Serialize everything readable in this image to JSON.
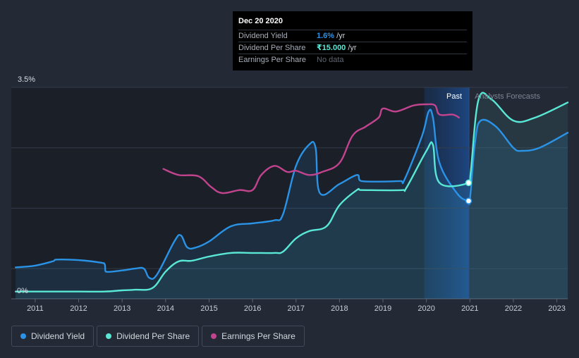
{
  "tooltip": {
    "date": "Dec 20 2020",
    "rows": [
      {
        "label": "Dividend Yield",
        "value": "1.6%",
        "unit": "/yr",
        "color": "#2b93e6"
      },
      {
        "label": "Dividend Per Share",
        "value": "₹15.000",
        "unit": "/yr",
        "color": "#5ae8d6"
      },
      {
        "label": "Earnings Per Share",
        "value": "No data",
        "unit": "",
        "color": "#5d6572"
      }
    ]
  },
  "legend": [
    {
      "label": "Dividend Yield",
      "color": "#2b93e6"
    },
    {
      "label": "Dividend Per Share",
      "color": "#5ae8d6"
    },
    {
      "label": "Earnings Per Share",
      "color": "#c2438e"
    }
  ],
  "chart_data": {
    "type": "line",
    "y_axis": {
      "min_label": "0%",
      "max_label": "3.5%",
      "ylim": [
        0,
        3.5
      ]
    },
    "x_ticks": [
      "2011",
      "2012",
      "2013",
      "2014",
      "2015",
      "2016",
      "2017",
      "2018",
      "2019",
      "2020",
      "2021",
      "2022",
      "2023"
    ],
    "xlim": [
      2010.45,
      2023.25
    ],
    "past_label": "Past",
    "forecast_label": "Analysts Forecasts",
    "past_start": 2019.95,
    "divider": 2020.98,
    "colors": {
      "yield": "#2b93e6",
      "dps": "#5ae8d6",
      "eps": "#c2438e"
    },
    "series": [
      {
        "name": "Dividend Yield",
        "key": "yield",
        "values": [
          [
            2010.55,
            0.52
          ],
          [
            2011.0,
            0.55
          ],
          [
            2011.4,
            0.62
          ],
          [
            2011.5,
            0.65
          ],
          [
            2012.0,
            0.64
          ],
          [
            2012.5,
            0.6
          ],
          [
            2012.6,
            0.57
          ],
          [
            2012.62,
            0.45
          ],
          [
            2013.0,
            0.47
          ],
          [
            2013.3,
            0.5
          ],
          [
            2013.5,
            0.5
          ],
          [
            2013.62,
            0.35
          ],
          [
            2013.8,
            0.4
          ],
          [
            2014.2,
            0.95
          ],
          [
            2014.35,
            1.05
          ],
          [
            2014.5,
            0.85
          ],
          [
            2014.7,
            0.85
          ],
          [
            2015.0,
            0.95
          ],
          [
            2015.5,
            1.2
          ],
          [
            2016.0,
            1.25
          ],
          [
            2016.5,
            1.3
          ],
          [
            2016.7,
            1.4
          ],
          [
            2017.0,
            2.2
          ],
          [
            2017.3,
            2.55
          ],
          [
            2017.45,
            2.5
          ],
          [
            2017.55,
            1.75
          ],
          [
            2018.0,
            1.9
          ],
          [
            2018.4,
            2.05
          ],
          [
            2018.5,
            1.95
          ],
          [
            2019.4,
            1.95
          ],
          [
            2019.5,
            1.98
          ],
          [
            2019.9,
            2.7
          ],
          [
            2020.05,
            3.1
          ],
          [
            2020.15,
            3.0
          ],
          [
            2020.3,
            2.25
          ],
          [
            2020.7,
            1.75
          ],
          [
            2020.95,
            1.62
          ],
          [
            2021.0,
            1.65
          ],
          [
            2021.12,
            2.6
          ],
          [
            2021.25,
            2.95
          ],
          [
            2021.6,
            2.85
          ],
          [
            2022.0,
            2.5
          ],
          [
            2022.2,
            2.45
          ],
          [
            2022.6,
            2.5
          ],
          [
            2023.25,
            2.75
          ]
        ]
      },
      {
        "name": "Dividend Per Share",
        "key": "dps",
        "values": [
          [
            2010.55,
            0.12
          ],
          [
            2011.0,
            0.12
          ],
          [
            2012.0,
            0.12
          ],
          [
            2012.6,
            0.12
          ],
          [
            2013.0,
            0.14
          ],
          [
            2013.3,
            0.15
          ],
          [
            2013.7,
            0.18
          ],
          [
            2014.0,
            0.45
          ],
          [
            2014.3,
            0.62
          ],
          [
            2014.6,
            0.63
          ],
          [
            2015.0,
            0.7
          ],
          [
            2015.5,
            0.76
          ],
          [
            2016.0,
            0.76
          ],
          [
            2016.5,
            0.76
          ],
          [
            2016.7,
            0.78
          ],
          [
            2017.0,
            1.0
          ],
          [
            2017.3,
            1.12
          ],
          [
            2017.7,
            1.2
          ],
          [
            2018.0,
            1.55
          ],
          [
            2018.4,
            1.8
          ],
          [
            2018.5,
            1.8
          ],
          [
            2019.45,
            1.8
          ],
          [
            2019.55,
            1.85
          ],
          [
            2020.0,
            2.45
          ],
          [
            2020.15,
            2.55
          ],
          [
            2020.3,
            1.92
          ],
          [
            2020.98,
            1.92
          ],
          [
            2021.02,
            2.1
          ],
          [
            2021.2,
            3.3
          ],
          [
            2021.5,
            3.3
          ],
          [
            2022.0,
            2.95
          ],
          [
            2022.5,
            3.0
          ],
          [
            2023.25,
            3.25
          ]
        ]
      },
      {
        "name": "Earnings Per Share",
        "key": "eps",
        "values": [
          [
            2013.95,
            2.15
          ],
          [
            2014.3,
            2.05
          ],
          [
            2014.75,
            2.03
          ],
          [
            2015.05,
            1.85
          ],
          [
            2015.3,
            1.75
          ],
          [
            2015.7,
            1.8
          ],
          [
            2016.0,
            1.8
          ],
          [
            2016.2,
            2.05
          ],
          [
            2016.5,
            2.2
          ],
          [
            2016.8,
            2.1
          ],
          [
            2017.0,
            2.12
          ],
          [
            2017.3,
            2.05
          ],
          [
            2017.6,
            2.1
          ],
          [
            2018.0,
            2.25
          ],
          [
            2018.3,
            2.7
          ],
          [
            2018.6,
            2.85
          ],
          [
            2018.9,
            3.0
          ],
          [
            2019.0,
            3.15
          ],
          [
            2019.3,
            3.1
          ],
          [
            2019.7,
            3.2
          ],
          [
            2020.0,
            3.22
          ],
          [
            2020.2,
            3.2
          ],
          [
            2020.3,
            3.05
          ],
          [
            2020.6,
            3.05
          ],
          [
            2020.75,
            3.0
          ]
        ]
      }
    ],
    "markers": [
      {
        "key": "yield",
        "x": 2020.97,
        "y": 1.62
      },
      {
        "key": "dps",
        "x": 2020.97,
        "y": 1.92
      }
    ]
  }
}
